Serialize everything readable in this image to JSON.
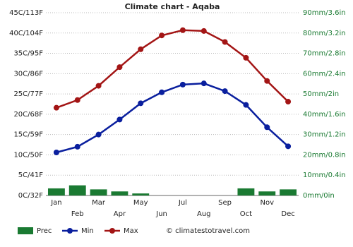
{
  "chart_data": {
    "type": "line",
    "title": "Climate chart - Aqaba",
    "categories": [
      "Jan",
      "Feb",
      "Mar",
      "Apr",
      "May",
      "Jun",
      "Jul",
      "Aug",
      "Sep",
      "Oct",
      "Nov",
      "Dec"
    ],
    "series": [
      {
        "name": "Prec",
        "type": "bar",
        "axis": "y2",
        "color": "#1a7a32",
        "values": [
          3.5,
          5,
          3,
          2,
          1,
          0,
          0,
          0,
          0,
          3.5,
          2,
          3
        ]
      },
      {
        "name": "Min",
        "type": "line",
        "color": "#0a1f9e",
        "values": [
          10.6,
          12,
          15,
          18.7,
          22.7,
          25.4,
          27.3,
          27.6,
          25.7,
          22.3,
          16.8,
          12.1
        ]
      },
      {
        "name": "Max",
        "type": "line",
        "color": "#a31515",
        "values": [
          21.6,
          23.5,
          27,
          31.6,
          36,
          39.4,
          40.7,
          40.5,
          37.8,
          33.9,
          28.2,
          23.1
        ]
      }
    ],
    "ylim": [
      0,
      45
    ],
    "yticks": [
      {
        "value": 0,
        "label": "0C/32F"
      },
      {
        "value": 5,
        "label": "5C/41F"
      },
      {
        "value": 10,
        "label": "10C/50F"
      },
      {
        "value": 15,
        "label": "15C/59F"
      },
      {
        "value": 20,
        "label": "20C/68F"
      },
      {
        "value": 25,
        "label": "25C/77F"
      },
      {
        "value": 30,
        "label": "30C/86F"
      },
      {
        "value": 35,
        "label": "35C/95F"
      },
      {
        "value": 40,
        "label": "40C/104F"
      },
      {
        "value": 45,
        "label": "45C/113F"
      }
    ],
    "y2lim": [
      0,
      90
    ],
    "y2ticks": [
      {
        "value": 0,
        "label": "0mm/0in"
      },
      {
        "value": 10,
        "label": "10mm/0.4in"
      },
      {
        "value": 20,
        "label": "20mm/0.8in"
      },
      {
        "value": 30,
        "label": "30mm/1.2in"
      },
      {
        "value": 40,
        "label": "40mm/1.6in"
      },
      {
        "value": 50,
        "label": "50mm/2in"
      },
      {
        "value": 60,
        "label": "60mm/2.4in"
      },
      {
        "value": 70,
        "label": "70mm/2.8in"
      },
      {
        "value": 80,
        "label": "80mm/3.2in"
      },
      {
        "value": 90,
        "label": "90mm/3.6in"
      }
    ],
    "grid": true,
    "credit": "© climatestotravel.com"
  }
}
